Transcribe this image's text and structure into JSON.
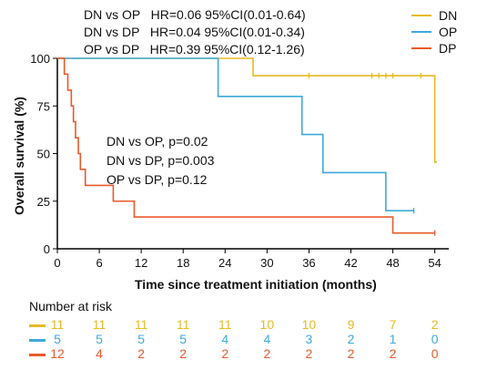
{
  "hr_text": [
    "DN vs OP   HR=0.06 95%CI(0.01-0.64)",
    "DN vs DP   HR=0.04 95%CI(0.01-0.34)",
    "OP vs DP   HR=0.39 95%CI(0.12-1.26)"
  ],
  "pvalue_text": [
    "DN vs OP, p=0.02",
    "DN vs DP, p=0.003",
    "OP vs DP, p=0.12"
  ],
  "risk_table": {
    "title": "Number at risk",
    "rows": [
      {
        "name": "DN",
        "color": "#E8B923",
        "values": [
          "11",
          "11",
          "11",
          "11",
          "11",
          "10",
          "10",
          "9",
          "7",
          "2"
        ]
      },
      {
        "name": "OP",
        "color": "#3FA9DB",
        "values": [
          "5",
          "5",
          "5",
          "5",
          "4",
          "4",
          "3",
          "2",
          "1",
          "0"
        ]
      },
      {
        "name": "DP",
        "color": "#E85A2A",
        "values": [
          "12",
          "4",
          "2",
          "2",
          "2",
          "2",
          "2",
          "2",
          "2",
          "0"
        ]
      }
    ]
  },
  "chart_data": {
    "type": "line",
    "step": true,
    "xlabel": "Time since treatment initiation (months)",
    "ylabel": "Overall survival  (%)",
    "xlim": [
      0,
      56
    ],
    "ylim": [
      0,
      100
    ],
    "xticks": [
      0,
      6,
      12,
      18,
      24,
      30,
      36,
      42,
      48,
      54
    ],
    "yticks": [
      0,
      25,
      50,
      75,
      100
    ],
    "legend_position": "top-right",
    "grid": false,
    "series": [
      {
        "name": "DN",
        "color": "#E8B923",
        "steps": [
          [
            0,
            100
          ],
          [
            28,
            90.9
          ],
          [
            54,
            45.5
          ],
          [
            54.3,
            45.5
          ]
        ],
        "censored": [
          [
            36,
            90.9
          ],
          [
            45,
            90.9
          ],
          [
            46,
            90.9
          ],
          [
            47,
            90.9
          ],
          [
            48,
            90.9
          ],
          [
            52,
            90.9
          ]
        ]
      },
      {
        "name": "OP",
        "color": "#3FA9DB",
        "steps": [
          [
            0,
            100
          ],
          [
            23,
            80
          ],
          [
            35,
            60
          ],
          [
            38,
            40
          ],
          [
            47,
            20
          ],
          [
            51,
            20
          ]
        ],
        "censored": [
          [
            51,
            20
          ]
        ]
      },
      {
        "name": "DP",
        "color": "#E85A2A",
        "steps": [
          [
            0,
            100
          ],
          [
            1,
            91.7
          ],
          [
            1.5,
            83.3
          ],
          [
            2,
            75
          ],
          [
            2.3,
            66.7
          ],
          [
            2.6,
            58.3
          ],
          [
            3,
            50
          ],
          [
            3.3,
            41.7
          ],
          [
            4,
            33.3
          ],
          [
            8,
            25
          ],
          [
            11,
            16.7
          ],
          [
            48,
            8.3
          ],
          [
            54,
            8.3
          ]
        ],
        "censored": [
          [
            54,
            8.3
          ]
        ]
      }
    ]
  }
}
